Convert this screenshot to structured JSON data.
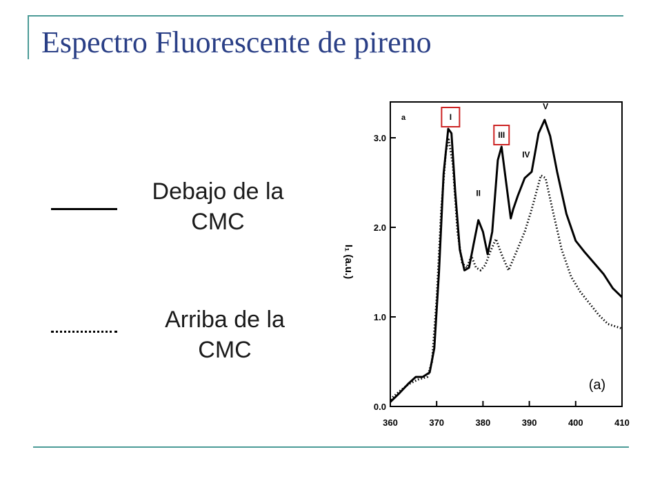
{
  "title": "Espectro Fluorescente de pireno",
  "legend": {
    "solid_label": "Debajo de la CMC",
    "dotted_label": "Arriba de la CMC"
  },
  "colors": {
    "title": "#2a3f86",
    "accent": "#4a9a96",
    "highlight_box": "#cc2222"
  },
  "chart_data": {
    "type": "line",
    "xlim": [
      360,
      410
    ],
    "ylim": [
      0,
      3.4
    ],
    "xticks": [
      360,
      370,
      380,
      390,
      400,
      410
    ],
    "yticks": [
      0,
      1,
      2,
      3
    ],
    "xtick_labels": [
      "360",
      "370",
      "380",
      "390",
      "400",
      "410"
    ],
    "ytick_labels": [
      "0.0",
      "1.0",
      "2.0",
      "3.0"
    ],
    "ylabel": "I₁ (a.u.)",
    "corner_label": "a",
    "panel_label": "(a)",
    "peak_labels": [
      {
        "text": "I",
        "x": 373,
        "y": 3.2,
        "boxed": true
      },
      {
        "text": "II",
        "x": 379,
        "y": 2.35,
        "boxed": false
      },
      {
        "text": "III",
        "x": 384,
        "y": 3.0,
        "boxed": true
      },
      {
        "text": "IV",
        "x": 389.3,
        "y": 2.78,
        "boxed": false
      },
      {
        "text": "V",
        "x": 393.5,
        "y": 3.32,
        "boxed": false
      }
    ],
    "series": [
      {
        "style": "solid",
        "points": [
          [
            360,
            0.05
          ],
          [
            362,
            0.15
          ],
          [
            364,
            0.26
          ],
          [
            365.5,
            0.33
          ],
          [
            367,
            0.33
          ],
          [
            368.5,
            0.38
          ],
          [
            369.5,
            0.65
          ],
          [
            370.5,
            1.5
          ],
          [
            371.5,
            2.6
          ],
          [
            372.5,
            3.1
          ],
          [
            373.2,
            3.05
          ],
          [
            374,
            2.4
          ],
          [
            375,
            1.75
          ],
          [
            376,
            1.52
          ],
          [
            377,
            1.55
          ],
          [
            378,
            1.82
          ],
          [
            379,
            2.08
          ],
          [
            380,
            1.95
          ],
          [
            381,
            1.7
          ],
          [
            382,
            1.95
          ],
          [
            383.2,
            2.75
          ],
          [
            384,
            2.9
          ],
          [
            385,
            2.5
          ],
          [
            386,
            2.1
          ],
          [
            386.5,
            2.2
          ],
          [
            387.5,
            2.35
          ],
          [
            389,
            2.55
          ],
          [
            390.5,
            2.62
          ],
          [
            392,
            3.05
          ],
          [
            393.3,
            3.2
          ],
          [
            394.5,
            3.02
          ],
          [
            396,
            2.62
          ],
          [
            398,
            2.15
          ],
          [
            400,
            1.85
          ],
          [
            402,
            1.72
          ],
          [
            404,
            1.6
          ],
          [
            406,
            1.48
          ],
          [
            408,
            1.32
          ],
          [
            410,
            1.22
          ]
        ]
      },
      {
        "style": "dotted",
        "points": [
          [
            360,
            0.08
          ],
          [
            362,
            0.17
          ],
          [
            364,
            0.25
          ],
          [
            366,
            0.3
          ],
          [
            368,
            0.33
          ],
          [
            369,
            0.5
          ],
          [
            370,
            1.2
          ],
          [
            371,
            2.2
          ],
          [
            372,
            2.85
          ],
          [
            372.6,
            2.98
          ],
          [
            373.5,
            2.7
          ],
          [
            374.5,
            1.95
          ],
          [
            375.5,
            1.6
          ],
          [
            376.5,
            1.55
          ],
          [
            377.5,
            1.68
          ],
          [
            378.5,
            1.55
          ],
          [
            379.5,
            1.52
          ],
          [
            380.5,
            1.58
          ],
          [
            381.5,
            1.72
          ],
          [
            382.8,
            1.87
          ],
          [
            384,
            1.7
          ],
          [
            385.5,
            1.52
          ],
          [
            387,
            1.7
          ],
          [
            389,
            1.95
          ],
          [
            390.5,
            2.2
          ],
          [
            392.5,
            2.58
          ],
          [
            393.5,
            2.55
          ],
          [
            395,
            2.2
          ],
          [
            397,
            1.75
          ],
          [
            399,
            1.45
          ],
          [
            401,
            1.28
          ],
          [
            403,
            1.15
          ],
          [
            405,
            1.02
          ],
          [
            407,
            0.92
          ],
          [
            410,
            0.87
          ]
        ]
      }
    ]
  }
}
